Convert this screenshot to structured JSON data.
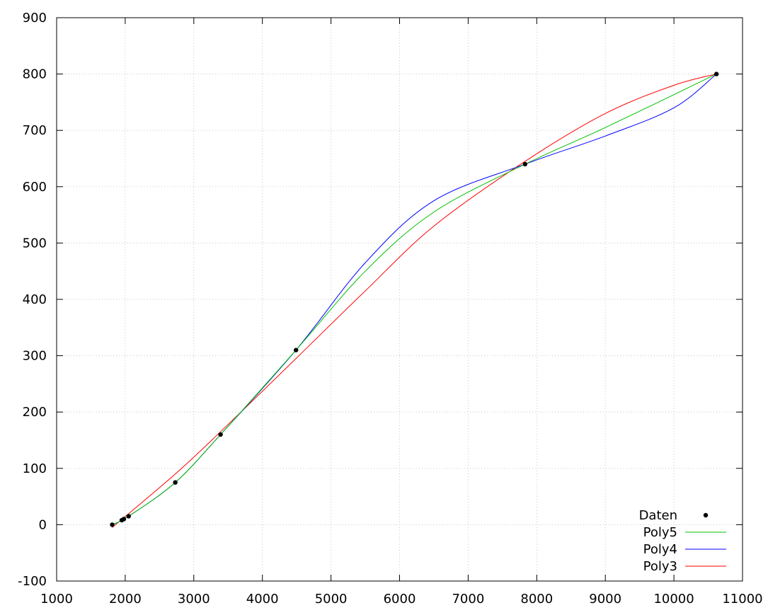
{
  "chart_data": {
    "type": "line",
    "title": "",
    "xlabel": "",
    "ylabel": "",
    "xlim": [
      1000,
      11000
    ],
    "ylim": [
      -100,
      900
    ],
    "grid": true,
    "legend_position": "bottom-right",
    "x_ticks": [
      1000,
      2000,
      3000,
      4000,
      5000,
      6000,
      7000,
      8000,
      9000,
      10000,
      11000
    ],
    "y_ticks": [
      -100,
      0,
      100,
      200,
      300,
      400,
      500,
      600,
      700,
      800,
      900
    ],
    "x_tick_labels": [
      "1000",
      "2000",
      "3000",
      "4000",
      "5000",
      "6000",
      "7000",
      "8000",
      "9000",
      "10000",
      "11000"
    ],
    "y_tick_labels": [
      "-100",
      "0",
      "100",
      "200",
      "300",
      "400",
      "500",
      "600",
      "700",
      "800",
      "900"
    ],
    "series": [
      {
        "name": "Daten",
        "kind": "points",
        "color": "#000000",
        "x": [
          1810,
          1950,
          1980,
          2050,
          2730,
          3390,
          4490,
          7830,
          10620
        ],
        "y": [
          0,
          8,
          10,
          15,
          75,
          160,
          310,
          640,
          800
        ]
      },
      {
        "name": "Poly5",
        "kind": "line",
        "color": "#00c000",
        "x": [
          1810,
          2050,
          2730,
          3390,
          4490,
          5500,
          6500,
          7830,
          9000,
          10620
        ],
        "y": [
          0,
          15,
          75,
          160,
          310,
          450,
          555,
          640,
          705,
          800
        ]
      },
      {
        "name": "Poly4",
        "kind": "line",
        "color": "#0000ff",
        "x": [
          1810,
          2050,
          2730,
          3390,
          4490,
          5500,
          6500,
          7830,
          9000,
          10000,
          10620
        ],
        "y": [
          0,
          15,
          75,
          160,
          310,
          465,
          575,
          640,
          690,
          740,
          800
        ]
      },
      {
        "name": "Poly3",
        "kind": "line",
        "color": "#ff0000",
        "x": [
          1810,
          2730,
          3390,
          4490,
          5500,
          6500,
          7830,
          9000,
          10000,
          10620
        ],
        "y": [
          -5,
          90,
          165,
          295,
          415,
          530,
          645,
          730,
          780,
          800
        ]
      }
    ]
  }
}
